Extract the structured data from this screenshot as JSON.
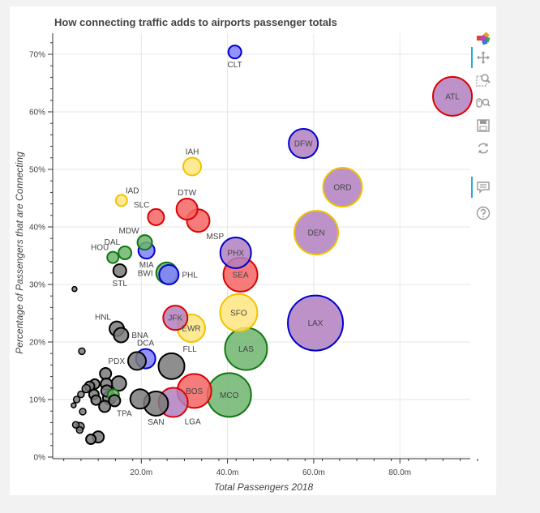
{
  "chart_data": {
    "type": "scatter",
    "title": "How connecting traffic adds to airports passenger totals",
    "xlabel": "Total Passengers 2018",
    "ylabel": "Percentage of Passengers that are Connecting",
    "xlim": [
      0,
      100
    ],
    "ylim": [
      0,
      74
    ],
    "x_ticks": [
      {
        "value": 20,
        "label": "20.0m"
      },
      {
        "value": 40,
        "label": "40.0m"
      },
      {
        "value": 60,
        "label": "60.0m"
      },
      {
        "value": 80,
        "label": "80.0m"
      }
    ],
    "y_ticks": [
      {
        "value": 0,
        "label": "0%"
      },
      {
        "value": 10,
        "label": "10%"
      },
      {
        "value": 20,
        "label": "20%"
      },
      {
        "value": 30,
        "label": "30%"
      },
      {
        "value": 40,
        "label": "40%"
      },
      {
        "value": 50,
        "label": "50%"
      },
      {
        "value": 60,
        "label": "60%"
      },
      {
        "value": 70,
        "label": "70%"
      }
    ],
    "grid": true,
    "colors": {
      "blue": {
        "fill": "#8080ff",
        "stroke": "#0000cc"
      },
      "purple": {
        "fill": "#b27fc0",
        "stroke": "#0000cc"
      },
      "red": {
        "fill": "#f56565",
        "stroke": "#dd0000"
      },
      "redpurple": {
        "fill": "#b27fc0",
        "stroke": "#dd0000"
      },
      "gold": {
        "fill": "#ffe680",
        "stroke": "#f2c200"
      },
      "goldpurple": {
        "fill": "#b27fc0",
        "stroke": "#f2c200"
      },
      "green": {
        "fill": "#6fb46f",
        "stroke": "#117711"
      },
      "black": {
        "fill": "#7a7a7a",
        "stroke": "#000000"
      }
    },
    "points": [
      {
        "label": "ATL",
        "x": 92.2,
        "y": 62.7,
        "r": 24,
        "color": "redpurple",
        "label_pos": "center"
      },
      {
        "label": "ORD",
        "x": 66.7,
        "y": 46.9,
        "r": 24,
        "color": "goldpurple",
        "label_pos": "center"
      },
      {
        "label": "DFW",
        "x": 57.6,
        "y": 54.5,
        "r": 18,
        "color": "purple",
        "label_pos": "center"
      },
      {
        "label": "DEN",
        "x": 60.6,
        "y": 39.0,
        "r": 27,
        "color": "goldpurple",
        "label_pos": "center"
      },
      {
        "label": "LAX",
        "x": 60.4,
        "y": 23.3,
        "r": 34,
        "color": "purple",
        "label_pos": "center"
      },
      {
        "label": "CLT",
        "x": 41.7,
        "y": 70.4,
        "r": 8,
        "color": "blue",
        "label_pos": "below"
      },
      {
        "label": "IAH",
        "x": 31.8,
        "y": 50.5,
        "r": 11,
        "color": "gold",
        "label_pos": "above"
      },
      {
        "label": "PHX",
        "x": 41.9,
        "y": 35.5,
        "r": 19,
        "color": "purple",
        "label_pos": "center"
      },
      {
        "label": "SEA",
        "x": 43.0,
        "y": 31.7,
        "r": 21,
        "color": "red",
        "label_pos": "center"
      },
      {
        "label": "SFO",
        "x": 42.6,
        "y": 25.1,
        "r": 23,
        "color": "gold",
        "label_pos": "center"
      },
      {
        "label": "LAS",
        "x": 44.3,
        "y": 18.8,
        "r": 26,
        "color": "green",
        "label_pos": "center"
      },
      {
        "label": "MCO",
        "x": 40.4,
        "y": 10.8,
        "r": 27,
        "color": "green",
        "label_pos": "center"
      },
      {
        "label": "BOS",
        "x": 32.3,
        "y": 11.5,
        "r": 21,
        "color": "red",
        "label_pos": "center"
      },
      {
        "label": "LGA",
        "x": 27.4,
        "y": 9.5,
        "r": 18,
        "color": "redpurple",
        "label_pos": "below-right"
      },
      {
        "label": "DTW",
        "x": 30.6,
        "y": 43.1,
        "r": 13,
        "color": "red",
        "label_pos": "above"
      },
      {
        "label": "MSP",
        "x": 33.2,
        "y": 41.1,
        "r": 14,
        "color": "red",
        "label_pos": "below-right"
      },
      {
        "label": "SLC",
        "x": 23.4,
        "y": 41.7,
        "r": 10,
        "color": "red",
        "label_pos": "above-left"
      },
      {
        "label": "IAD",
        "x": 15.4,
        "y": 44.6,
        "r": 7,
        "color": "gold",
        "label_pos": "above-right"
      },
      {
        "label": "MDW",
        "x": 20.8,
        "y": 37.3,
        "r": 9,
        "color": "green",
        "label_pos": "above-left"
      },
      {
        "label": "DAL",
        "x": 16.2,
        "y": 35.5,
        "r": 8,
        "color": "green",
        "label_pos": "above-left"
      },
      {
        "label": "HOU",
        "x": 13.4,
        "y": 34.7,
        "r": 7,
        "color": "green",
        "label_pos": "above-left"
      },
      {
        "label": "MIA",
        "x": 21.2,
        "y": 35.9,
        "r": 10,
        "color": "blue",
        "label_pos": "below"
      },
      {
        "label": "STL",
        "x": 15.0,
        "y": 32.4,
        "r": 8,
        "color": "black",
        "label_pos": "below"
      },
      {
        "label": "BWI",
        "x": 25.9,
        "y": 32.0,
        "r": 13,
        "color": "green",
        "label_pos": "left"
      },
      {
        "label": "PHL",
        "x": 26.4,
        "y": 31.7,
        "r": 12,
        "color": "blue",
        "label_pos": "right"
      },
      {
        "label": "JFK",
        "x": 27.9,
        "y": 24.2,
        "r": 15,
        "color": "redpurple",
        "label_pos": "center"
      },
      {
        "label": "EWR",
        "x": 31.6,
        "y": 22.4,
        "r": 17,
        "color": "gold",
        "label_pos": "center"
      },
      {
        "label": "HNL",
        "x": 14.3,
        "y": 22.3,
        "r": 9,
        "color": "black",
        "label_pos": "above-left"
      },
      {
        "label": "BNA",
        "x": 15.3,
        "y": 21.2,
        "r": 9,
        "color": "black",
        "label_pos": "right"
      },
      {
        "label": "DCA",
        "x": 21.0,
        "y": 17.1,
        "r": 12,
        "color": "blue",
        "label_pos": "above"
      },
      {
        "label": "PDX",
        "x": 19.0,
        "y": 16.7,
        "r": 11,
        "color": "black",
        "label_pos": "left"
      },
      {
        "label": "FLL",
        "x": 27.0,
        "y": 15.8,
        "r": 16,
        "color": "black",
        "label_pos": "above-right"
      },
      {
        "label": "TPA",
        "x": 19.7,
        "y": 10.1,
        "r": 12,
        "color": "black",
        "label_pos": "below-left"
      },
      {
        "label": "SAN",
        "x": 23.4,
        "y": 9.3,
        "r": 15,
        "color": "black",
        "label_pos": "below"
      },
      {
        "label": "",
        "x": 4.5,
        "y": 29.2,
        "r": 3,
        "color": "black"
      },
      {
        "label": "",
        "x": 6.2,
        "y": 18.4,
        "r": 4,
        "color": "black"
      },
      {
        "label": "",
        "x": 11.7,
        "y": 14.5,
        "r": 7,
        "color": "black"
      },
      {
        "label": "",
        "x": 14.8,
        "y": 12.8,
        "r": 9,
        "color": "black"
      },
      {
        "label": "",
        "x": 11.9,
        "y": 12.7,
        "r": 7,
        "color": "black"
      },
      {
        "label": "",
        "x": 12.0,
        "y": 11.5,
        "r": 7,
        "color": "black"
      },
      {
        "label": "",
        "x": 13.5,
        "y": 10.8,
        "r": 7,
        "color": "green"
      },
      {
        "label": "",
        "x": 12.6,
        "y": 10.3,
        "r": 8,
        "color": "black"
      },
      {
        "label": "",
        "x": 11.5,
        "y": 8.8,
        "r": 7,
        "color": "black"
      },
      {
        "label": "",
        "x": 13.8,
        "y": 9.8,
        "r": 7,
        "color": "black"
      },
      {
        "label": "",
        "x": 9.2,
        "y": 12.7,
        "r": 6,
        "color": "black"
      },
      {
        "label": "",
        "x": 8.0,
        "y": 12.3,
        "r": 6,
        "color": "black"
      },
      {
        "label": "",
        "x": 7.2,
        "y": 11.9,
        "r": 5,
        "color": "black"
      },
      {
        "label": "",
        "x": 9.0,
        "y": 10.9,
        "r": 6,
        "color": "black"
      },
      {
        "label": "",
        "x": 9.5,
        "y": 9.9,
        "r": 6,
        "color": "black"
      },
      {
        "label": "",
        "x": 6.0,
        "y": 10.9,
        "r": 4,
        "color": "black"
      },
      {
        "label": "",
        "x": 5.0,
        "y": 10.0,
        "r": 4,
        "color": "black"
      },
      {
        "label": "",
        "x": 4.3,
        "y": 9.0,
        "r": 3,
        "color": "black"
      },
      {
        "label": "",
        "x": 6.4,
        "y": 7.9,
        "r": 4,
        "color": "black"
      },
      {
        "label": "",
        "x": 4.8,
        "y": 5.6,
        "r": 4,
        "color": "black"
      },
      {
        "label": "",
        "x": 5.8,
        "y": 5.3,
        "r": 5,
        "color": "black"
      },
      {
        "label": "",
        "x": 5.7,
        "y": 4.7,
        "r": 4,
        "color": "black"
      },
      {
        "label": "",
        "x": 10.0,
        "y": 3.5,
        "r": 7,
        "color": "black"
      },
      {
        "label": "",
        "x": 8.3,
        "y": 3.1,
        "r": 6,
        "color": "black"
      }
    ]
  },
  "toolbar": {
    "items": [
      {
        "name": "bokeh-logo",
        "icon": "bokeh-logo-icon",
        "interactable": false,
        "active": false
      },
      {
        "name": "pan-tool",
        "icon": "pan-icon",
        "interactable": true,
        "active": true
      },
      {
        "name": "box-zoom-tool",
        "icon": "box-zoom-icon",
        "interactable": true,
        "active": false
      },
      {
        "name": "wheel-zoom-tool",
        "icon": "wheel-zoom-icon",
        "interactable": true,
        "active": false
      },
      {
        "name": "save-tool",
        "icon": "save-icon",
        "interactable": true,
        "active": false
      },
      {
        "name": "reset-tool",
        "icon": "reset-icon",
        "interactable": true,
        "active": false
      },
      {
        "name": "hover-tool",
        "icon": "hover-icon",
        "interactable": true,
        "active": true
      },
      {
        "name": "help-tool",
        "icon": "help-icon",
        "interactable": true,
        "active": false
      }
    ]
  }
}
